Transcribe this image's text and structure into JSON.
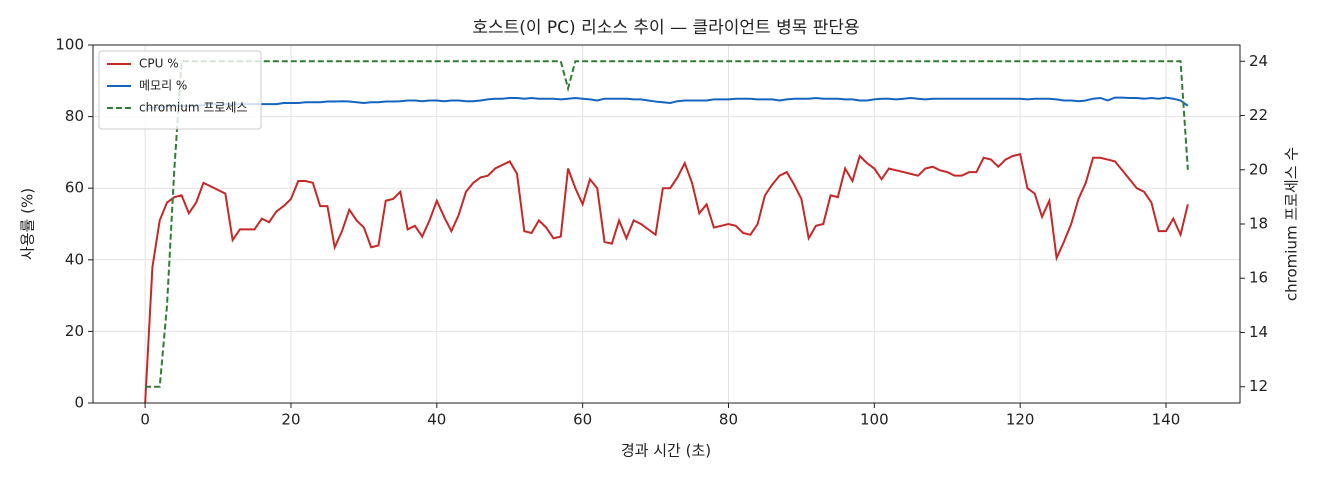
{
  "chart_data": {
    "type": "line",
    "title": "호스트(이 PC) 리소스 추이 — 클라이언트 병목 판단용",
    "xlabel": "경과 시간 (초)",
    "ylabel": "사용률 (%)",
    "y2label": "chromium 프로세스 수",
    "x": [
      0,
      1,
      2,
      3,
      4,
      5,
      6,
      7,
      8,
      9,
      10,
      11,
      12,
      13,
      14,
      15,
      16,
      17,
      18,
      19,
      20,
      21,
      22,
      23,
      24,
      25,
      26,
      27,
      28,
      29,
      30,
      31,
      32,
      33,
      34,
      35,
      36,
      37,
      38,
      39,
      40,
      41,
      42,
      43,
      44,
      45,
      46,
      47,
      48,
      49,
      50,
      51,
      52,
      53,
      54,
      55,
      56,
      57,
      58,
      59,
      60,
      61,
      62,
      63,
      64,
      65,
      66,
      67,
      68,
      69,
      70,
      71,
      72,
      73,
      74,
      75,
      76,
      77,
      78,
      79,
      80,
      81,
      82,
      83,
      84,
      85,
      86,
      87,
      88,
      89,
      90,
      91,
      92,
      93,
      94,
      95,
      96,
      97,
      98,
      99,
      100,
      101,
      102,
      103,
      104,
      105,
      106,
      107,
      108,
      109,
      110,
      111,
      112,
      113,
      114,
      115,
      116,
      117,
      118,
      119,
      120,
      121,
      122,
      123,
      124,
      125,
      126,
      127,
      128,
      129,
      130,
      131,
      132,
      133,
      134,
      135,
      136,
      137,
      138,
      139,
      140,
      141,
      142,
      143
    ],
    "series": [
      {
        "name": "CPU %",
        "color": "#c62828",
        "dash": "solid",
        "axis": "y",
        "values": [
          0,
          38,
          51,
          56,
          57.5,
          58,
          53,
          56,
          61.5,
          60.5,
          59.5,
          58.5,
          45.5,
          48.5,
          48.5,
          48.5,
          51.5,
          50.5,
          53.5,
          55,
          57,
          62,
          62,
          61.5,
          55,
          55,
          43.5,
          48,
          54,
          51,
          49,
          43.5,
          44,
          56.5,
          57,
          59,
          48.5,
          49.5,
          46.5,
          51,
          56.5,
          52,
          48,
          52.5,
          59,
          61.5,
          63,
          63.5,
          65.5,
          66.5,
          67.5,
          64,
          48,
          47.5,
          51,
          49,
          46,
          46.5,
          65.5,
          60,
          55.5,
          62.5,
          60,
          45,
          44.5,
          51,
          46,
          51,
          50,
          48.5,
          47,
          60,
          60,
          63,
          67,
          61.5,
          53,
          55.5,
          49,
          49.5,
          50,
          49.5,
          47.5,
          47,
          50,
          58,
          61,
          63.5,
          64.5,
          61,
          57,
          46,
          49.5,
          50,
          58,
          57.5,
          65.5,
          62,
          69,
          67,
          65.5,
          62.5,
          65.5,
          65,
          64.5,
          64,
          63.5,
          65.5,
          66,
          65,
          64.5,
          63.5,
          63.5,
          64.5,
          64.5,
          68.5,
          68,
          66,
          68,
          69,
          69.5,
          60,
          58.5,
          52,
          56.5,
          40.5,
          45,
          50,
          57,
          61.5,
          68.5,
          68.5,
          68,
          67.5,
          65,
          62.5,
          60,
          59,
          56,
          48,
          48,
          51.5,
          47,
          55.5
        ]
      },
      {
        "name": "메모리 %",
        "color": "#1565c0",
        "dash": "solid",
        "axis": "y",
        "values": [
          82,
          82.5,
          82.5,
          83,
          83,
          83,
          83,
          83,
          83.2,
          83.5,
          83.5,
          83.5,
          83.5,
          83.5,
          83.5,
          83.5,
          83.5,
          83.5,
          83.5,
          83.8,
          83.8,
          83.8,
          84,
          84,
          84,
          84.2,
          84.2,
          84.3,
          84.2,
          84,
          83.8,
          84,
          84,
          84.2,
          84.2,
          84.3,
          84.5,
          84.5,
          84.3,
          84.5,
          84.5,
          84.3,
          84.5,
          84.5,
          84.3,
          84.3,
          84.5,
          84.8,
          85,
          85,
          85.2,
          85.2,
          85,
          85.2,
          85,
          85,
          85,
          84.8,
          85,
          85.2,
          85,
          84.8,
          84.5,
          85,
          85,
          85,
          85,
          84.8,
          84.8,
          84.5,
          84.2,
          84,
          83.8,
          84.3,
          84.5,
          84.5,
          84.5,
          84.5,
          84.8,
          84.8,
          84.8,
          85,
          85,
          85,
          84.8,
          84.8,
          84.8,
          84.5,
          84.8,
          85,
          85,
          85,
          85.2,
          85,
          85,
          85,
          84.8,
          84.8,
          84.5,
          84.5,
          84.8,
          85,
          85,
          84.8,
          85,
          85.2,
          85,
          84.8,
          85,
          85,
          85,
          85,
          85,
          85,
          85,
          85,
          85,
          85,
          85,
          85,
          85,
          84.8,
          85,
          85,
          85,
          84.8,
          84.5,
          84.5,
          84.3,
          84.5,
          85,
          85.2,
          84.5,
          85.3,
          85.3,
          85.2,
          85.2,
          85,
          85.2,
          85,
          85.3,
          85,
          84.5,
          83
        ]
      },
      {
        "name": "chromium 프로세스",
        "color": "#2e7d32",
        "dash": "dashed",
        "axis": "y2",
        "values": [
          12,
          12,
          12,
          15,
          20,
          24,
          24,
          24,
          24,
          24,
          24,
          24,
          24,
          24,
          24,
          24,
          24,
          24,
          24,
          24,
          24,
          24,
          24,
          24,
          24,
          24,
          24,
          24,
          24,
          24,
          24,
          24,
          24,
          24,
          24,
          24,
          24,
          24,
          24,
          24,
          24,
          24,
          24,
          24,
          24,
          24,
          24,
          24,
          24,
          24,
          24,
          24,
          24,
          24,
          24,
          24,
          24,
          24,
          23,
          24,
          24,
          24,
          24,
          24,
          24,
          24,
          24,
          24,
          24,
          24,
          24,
          24,
          24,
          24,
          24,
          24,
          24,
          24,
          24,
          24,
          24,
          24,
          24,
          24,
          24,
          24,
          24,
          24,
          24,
          24,
          24,
          24,
          24,
          24,
          24,
          24,
          24,
          24,
          24,
          24,
          24,
          24,
          24,
          24,
          24,
          24,
          24,
          24,
          24,
          24,
          24,
          24,
          24,
          24,
          24,
          24,
          24,
          24,
          24,
          24,
          24,
          24,
          24,
          24,
          24,
          24,
          24,
          24,
          24,
          24,
          24,
          24,
          24,
          24,
          24,
          24,
          24,
          24,
          24,
          24,
          24,
          24,
          24,
          20
        ]
      }
    ],
    "xlim": [
      -7.15,
      150.15
    ],
    "xticks": [
      0,
      20,
      40,
      60,
      80,
      100,
      120,
      140
    ],
    "ylim": [
      0,
      100
    ],
    "yticks": [
      0,
      20,
      40,
      60,
      80,
      100
    ],
    "y2lim": [
      11.4,
      24.6
    ],
    "y2ticks": [
      12,
      14,
      16,
      18,
      20,
      22,
      24
    ],
    "grid": true,
    "legend": "upper left"
  }
}
